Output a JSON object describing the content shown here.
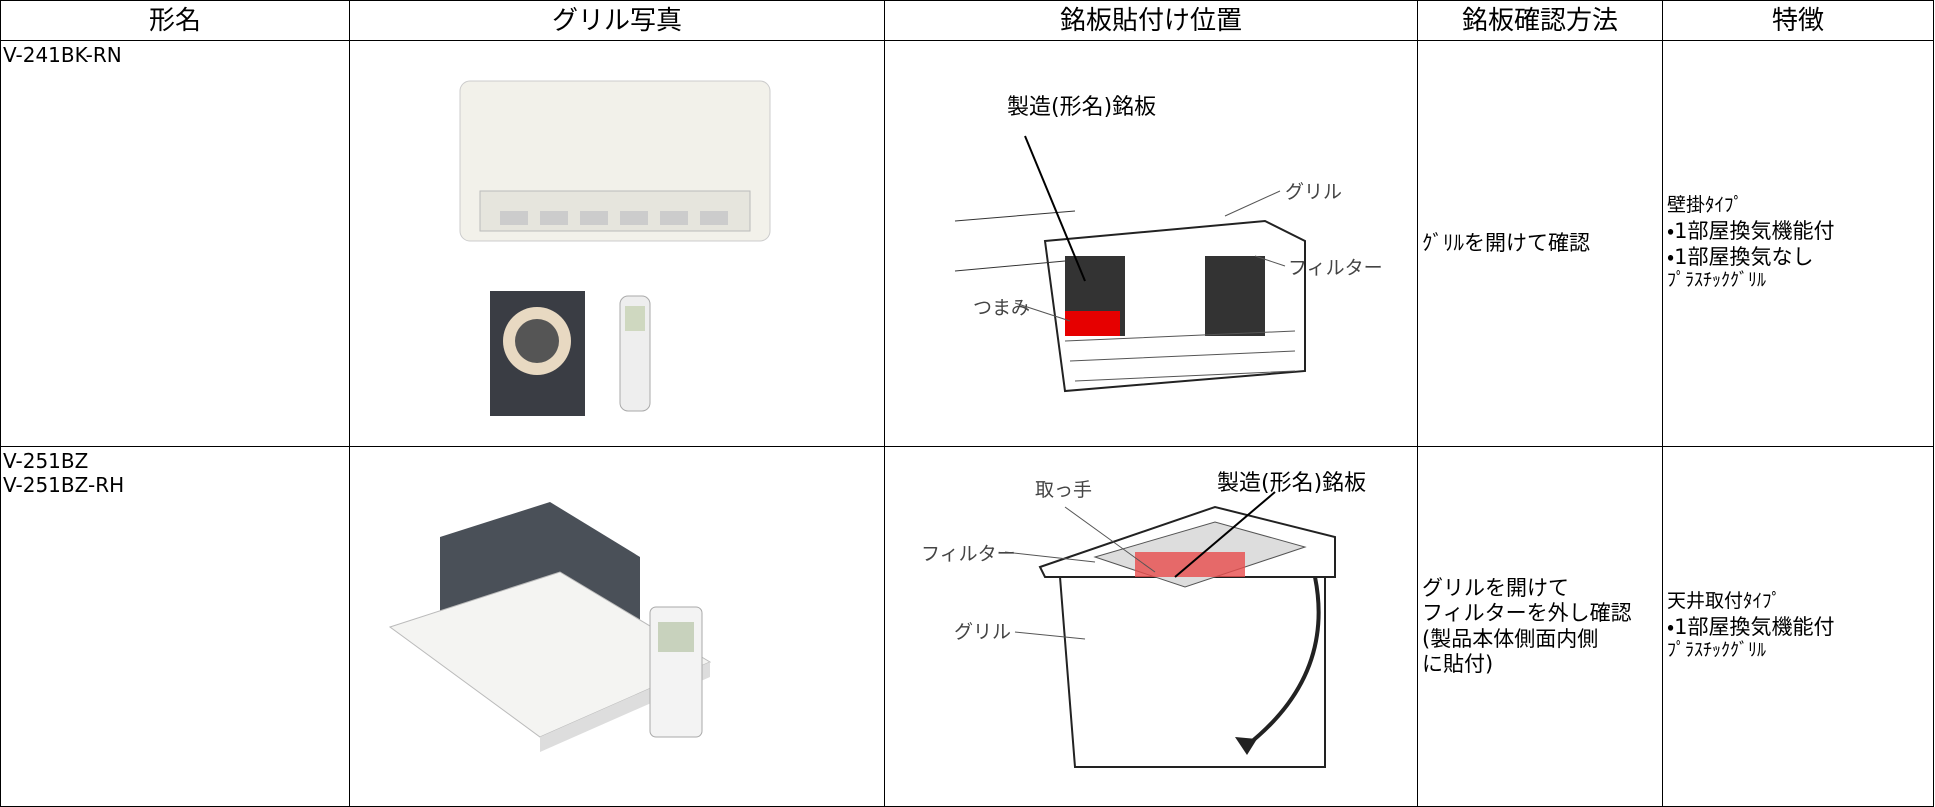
{
  "table": {
    "headers": [
      "形名",
      "グリル写真",
      "銘板貼付け位置",
      "銘板確認方法",
      "特徴"
    ],
    "rows": [
      {
        "model": "V-241BK-RN",
        "diagram_labels": [
          "製造(形名)銘板",
          "グリル",
          "フィルター",
          "つまみ"
        ],
        "method": "ｸﾞﾘﾙを開けて確認",
        "features": [
          "壁掛ﾀｲﾌﾟ",
          "・1部屋換気機能付",
          "・1部屋換気なし",
          "ﾌﾟﾗｽﾁｯｸｸﾞﾘﾙ"
        ]
      },
      {
        "model": "V-251BZ\nV-251BZ-RH",
        "diagram_labels": [
          "取っ手",
          "製造(形名)銘板",
          "フィルター",
          "グリル"
        ],
        "method": "グリルを開けて\nフィルターを外し確認\n(製品本体側面内側\nに貼付)",
        "features": [
          "天井取付ﾀｲﾌﾟ",
          "・1部屋換気機能付",
          "ﾌﾟﾗｽﾁｯｸｸﾞﾘﾙ"
        ]
      }
    ]
  }
}
